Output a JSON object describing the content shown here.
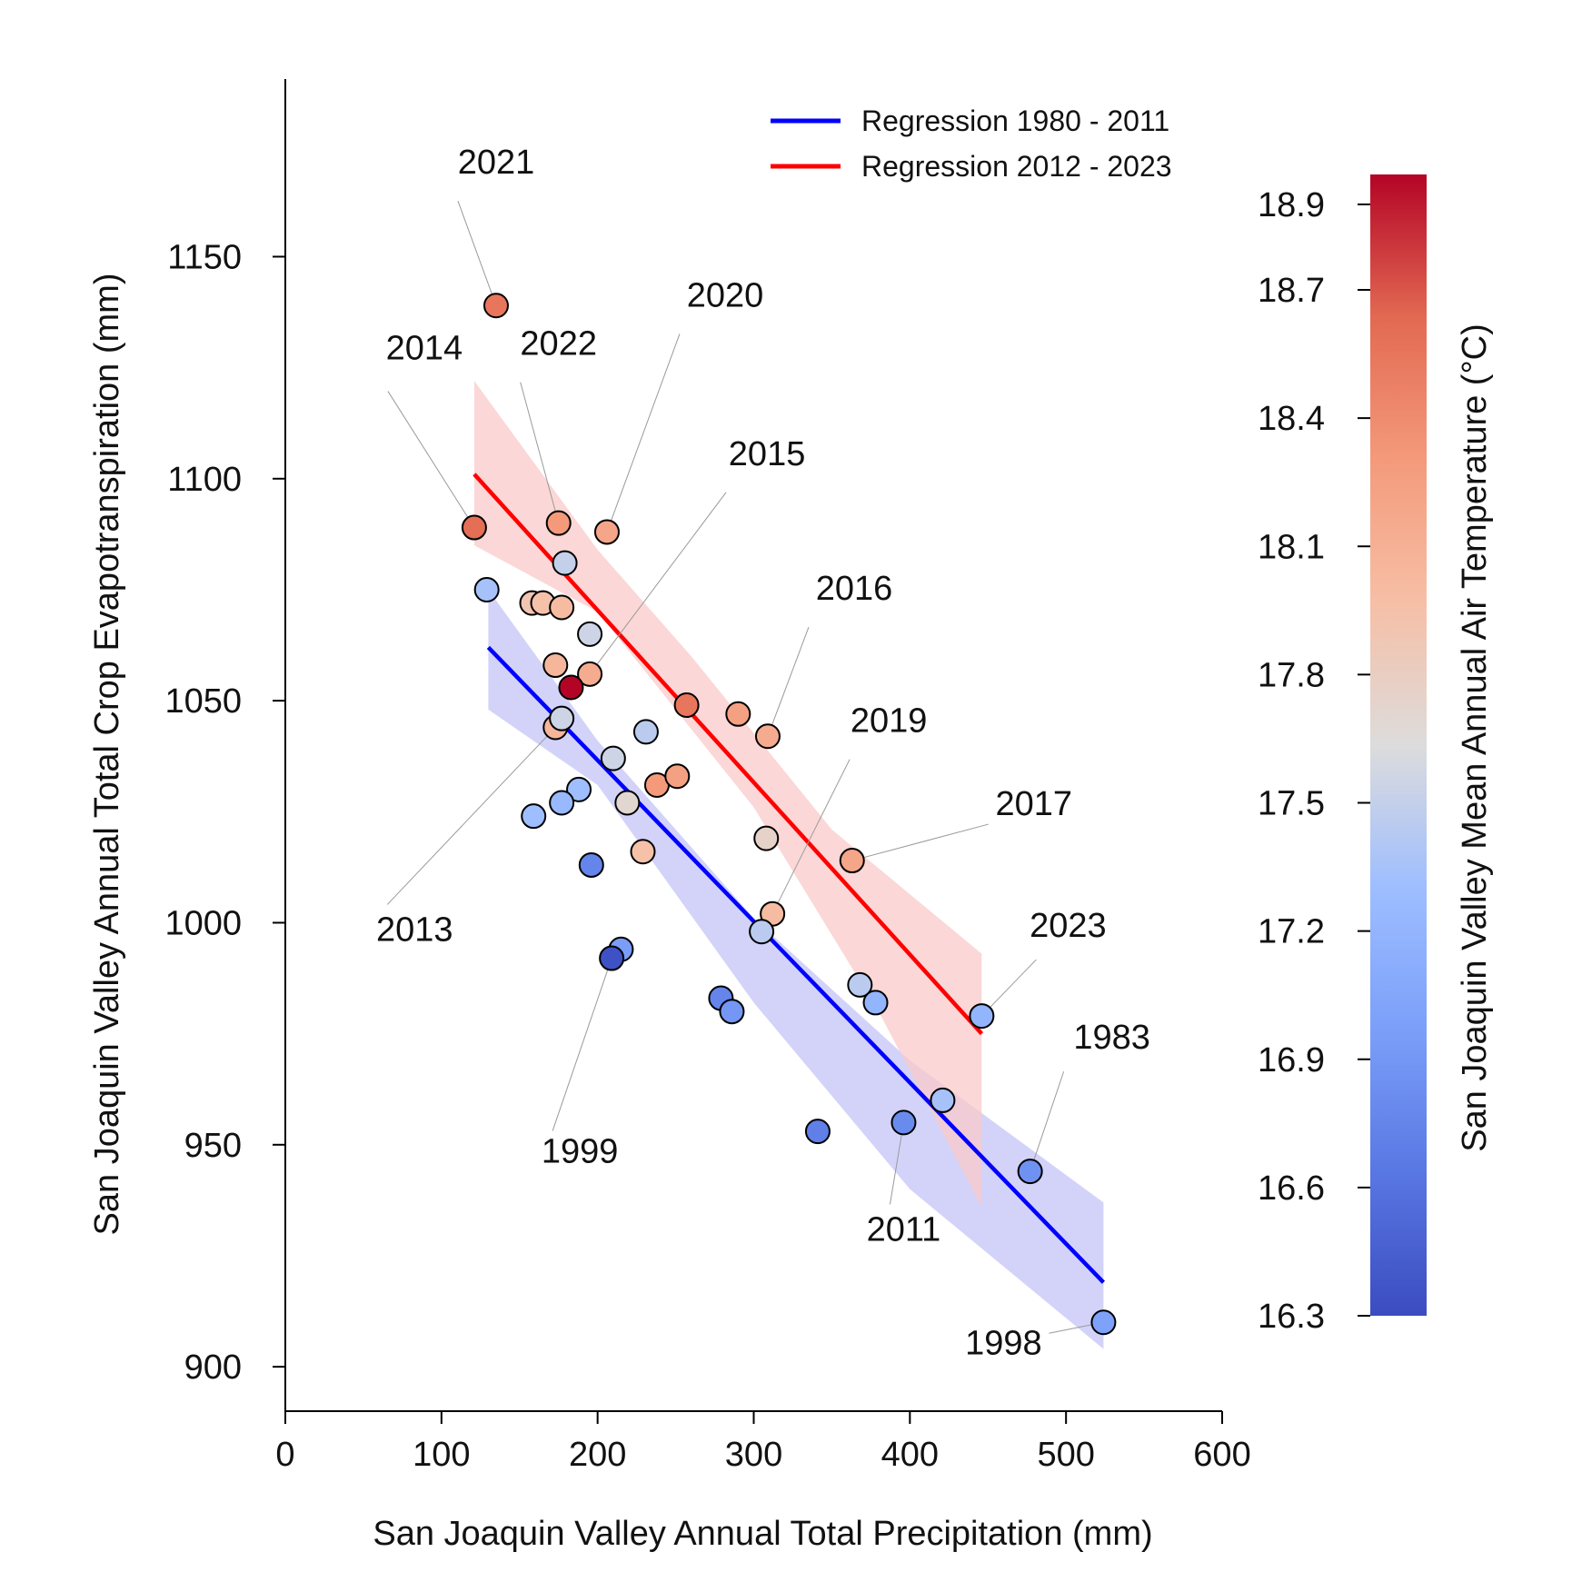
{
  "chart_data": {
    "type": "scatter",
    "xlabel": "San Joaquin Valley Annual Total Precipitation (mm)",
    "ylabel": "San Joaquin Valley Annual Total Crop Evapotranspiration (mm)",
    "xlim": [
      0,
      600
    ],
    "ylim": [
      890,
      1190
    ],
    "xticks": [
      0,
      100,
      200,
      300,
      400,
      500,
      600
    ],
    "yticks": [
      900,
      950,
      1000,
      1050,
      1100,
      1150
    ],
    "grid": false,
    "legend_position": "top-right",
    "colorbar": {
      "label": "San Joaquin Valley Mean Annual Air Temperature (°C)",
      "min": 16.3,
      "max": 18.97,
      "ticks": [
        16.3,
        16.6,
        16.9,
        17.2,
        17.5,
        17.8,
        18.1,
        18.4,
        18.7,
        18.9
      ],
      "colormap": "coolwarm"
    },
    "regressions": [
      {
        "name": "Regression 1980 - 2011",
        "color": "#0000ff",
        "band_color": "#c8c8f8",
        "x_range": [
          130,
          524
        ],
        "y_at_range": [
          1062,
          919
        ],
        "band_upper": [
          [
            130,
            1075
          ],
          [
            200,
            1041
          ],
          [
            300,
            1001
          ],
          [
            400,
            969
          ],
          [
            524,
            937
          ]
        ],
        "band_lower": [
          [
            524,
            904
          ],
          [
            400,
            940
          ],
          [
            300,
            982
          ],
          [
            200,
            1031
          ],
          [
            130,
            1048
          ]
        ]
      },
      {
        "name": "Regression 2012 - 2023",
        "color": "#ff0000",
        "band_color": "#f9c9c9",
        "x_range": [
          121,
          446
        ],
        "y_at_range": [
          1101,
          975
        ],
        "band_upper": [
          [
            121,
            1122
          ],
          [
            200,
            1084
          ],
          [
            260,
            1060
          ],
          [
            350,
            1021
          ],
          [
            446,
            993
          ]
        ],
        "band_lower": [
          [
            446,
            936
          ],
          [
            380,
            980
          ],
          [
            300,
            1026
          ],
          [
            200,
            1070
          ],
          [
            121,
            1085
          ]
        ]
      }
    ],
    "points": [
      {
        "x": 135,
        "y": 1139,
        "t": 18.55,
        "year": "2021"
      },
      {
        "x": 121,
        "y": 1089,
        "t": 18.6,
        "year": "2014"
      },
      {
        "x": 175,
        "y": 1090,
        "t": 18.3,
        "year": "2022"
      },
      {
        "x": 206,
        "y": 1088,
        "t": 18.2,
        "year": "2020"
      },
      {
        "x": 179,
        "y": 1081,
        "t": 17.5,
        "year": ""
      },
      {
        "x": 129,
        "y": 1075,
        "t": 17.35,
        "year": ""
      },
      {
        "x": 158,
        "y": 1072,
        "t": 17.9,
        "year": ""
      },
      {
        "x": 165,
        "y": 1072,
        "t": 17.95,
        "year": ""
      },
      {
        "x": 177,
        "y": 1071,
        "t": 18.0,
        "year": ""
      },
      {
        "x": 195,
        "y": 1065,
        "t": 17.55,
        "year": ""
      },
      {
        "x": 173,
        "y": 1058,
        "t": 18.05,
        "year": ""
      },
      {
        "x": 195,
        "y": 1056,
        "t": 18.15,
        "year": "2015"
      },
      {
        "x": 183,
        "y": 1053,
        "t": 18.97,
        "year": ""
      },
      {
        "x": 257,
        "y": 1049,
        "t": 18.55,
        "year": ""
      },
      {
        "x": 290,
        "y": 1047,
        "t": 18.25,
        "year": ""
      },
      {
        "x": 309,
        "y": 1042,
        "t": 18.15,
        "year": "2016"
      },
      {
        "x": 173,
        "y": 1044,
        "t": 18.05,
        "year": "2013"
      },
      {
        "x": 177,
        "y": 1046,
        "t": 17.55,
        "year": ""
      },
      {
        "x": 231,
        "y": 1043,
        "t": 17.45,
        "year": ""
      },
      {
        "x": 210,
        "y": 1037,
        "t": 17.55,
        "year": ""
      },
      {
        "x": 238,
        "y": 1031,
        "t": 18.3,
        "year": ""
      },
      {
        "x": 251,
        "y": 1033,
        "t": 18.25,
        "year": ""
      },
      {
        "x": 188,
        "y": 1030,
        "t": 17.3,
        "year": ""
      },
      {
        "x": 177,
        "y": 1027,
        "t": 17.25,
        "year": ""
      },
      {
        "x": 219,
        "y": 1027,
        "t": 17.7,
        "year": ""
      },
      {
        "x": 159,
        "y": 1024,
        "t": 17.3,
        "year": ""
      },
      {
        "x": 308,
        "y": 1019,
        "t": 17.75,
        "year": ""
      },
      {
        "x": 229,
        "y": 1016,
        "t": 17.95,
        "year": ""
      },
      {
        "x": 363,
        "y": 1014,
        "t": 18.2,
        "year": "2017"
      },
      {
        "x": 196,
        "y": 1013,
        "t": 16.75,
        "year": ""
      },
      {
        "x": 312,
        "y": 1002,
        "t": 18.0,
        "year": "2019"
      },
      {
        "x": 305,
        "y": 998,
        "t": 17.45,
        "year": ""
      },
      {
        "x": 215,
        "y": 994,
        "t": 16.95,
        "year": ""
      },
      {
        "x": 209,
        "y": 992,
        "t": 16.35,
        "year": "1999"
      },
      {
        "x": 368,
        "y": 986,
        "t": 17.45,
        "year": ""
      },
      {
        "x": 378,
        "y": 982,
        "t": 17.2,
        "year": ""
      },
      {
        "x": 279,
        "y": 983,
        "t": 16.75,
        "year": ""
      },
      {
        "x": 286,
        "y": 980,
        "t": 16.9,
        "year": ""
      },
      {
        "x": 446,
        "y": 979,
        "t": 17.2,
        "year": "2023"
      },
      {
        "x": 421,
        "y": 960,
        "t": 17.35,
        "year": ""
      },
      {
        "x": 396,
        "y": 955,
        "t": 16.8,
        "year": "2011"
      },
      {
        "x": 341,
        "y": 953,
        "t": 16.7,
        "year": ""
      },
      {
        "x": 477,
        "y": 944,
        "t": 16.85,
        "year": "1983"
      },
      {
        "x": 524,
        "y": 910,
        "t": 17.0,
        "year": "1998"
      }
    ]
  },
  "legend": {
    "items": [
      {
        "label": "Regression 1980 - 2011",
        "color": "#0000ff"
      },
      {
        "label": "Regression 2012 - 2023",
        "color": "#ff0000"
      }
    ]
  }
}
